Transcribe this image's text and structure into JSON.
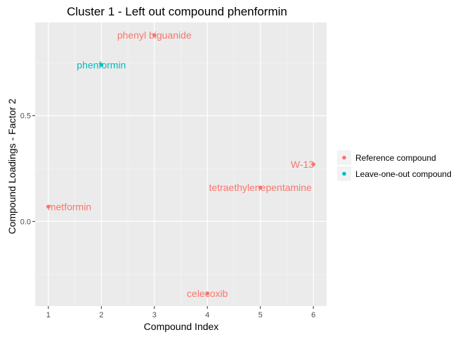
{
  "chart_data": {
    "type": "scatter",
    "title": "Cluster 1 - Left out compound phenformin",
    "xlabel": "Compound Index",
    "ylabel": "Compound Loadings - Factor 2",
    "xlim": [
      0.75,
      6.25
    ],
    "ylim": [
      -0.4,
      0.94
    ],
    "x_ticks": [
      1,
      2,
      3,
      4,
      5,
      6
    ],
    "x_tick_labels": [
      "1",
      "2",
      "3",
      "4",
      "5",
      "6"
    ],
    "y_ticks": [
      0.0,
      0.5
    ],
    "y_tick_labels": [
      "0.0",
      "0.5"
    ],
    "grid": true,
    "legend_position": "right",
    "series": [
      {
        "name": "Reference compound",
        "color": "#F8766D",
        "points": [
          {
            "x": 1,
            "y": 0.07,
            "label": "metformin"
          },
          {
            "x": 3,
            "y": 0.88,
            "label": "phenyl biguanide"
          },
          {
            "x": 4,
            "y": -0.34,
            "label": "celecoxib"
          },
          {
            "x": 5,
            "y": 0.16,
            "label": "tetraethylenepentamine"
          },
          {
            "x": 6,
            "y": 0.27,
            "label": "W-13"
          }
        ]
      },
      {
        "name": "Leave-one-out compound",
        "color": "#00BFC4",
        "points": [
          {
            "x": 2,
            "y": 0.74,
            "label": "phenformin"
          }
        ]
      }
    ]
  }
}
